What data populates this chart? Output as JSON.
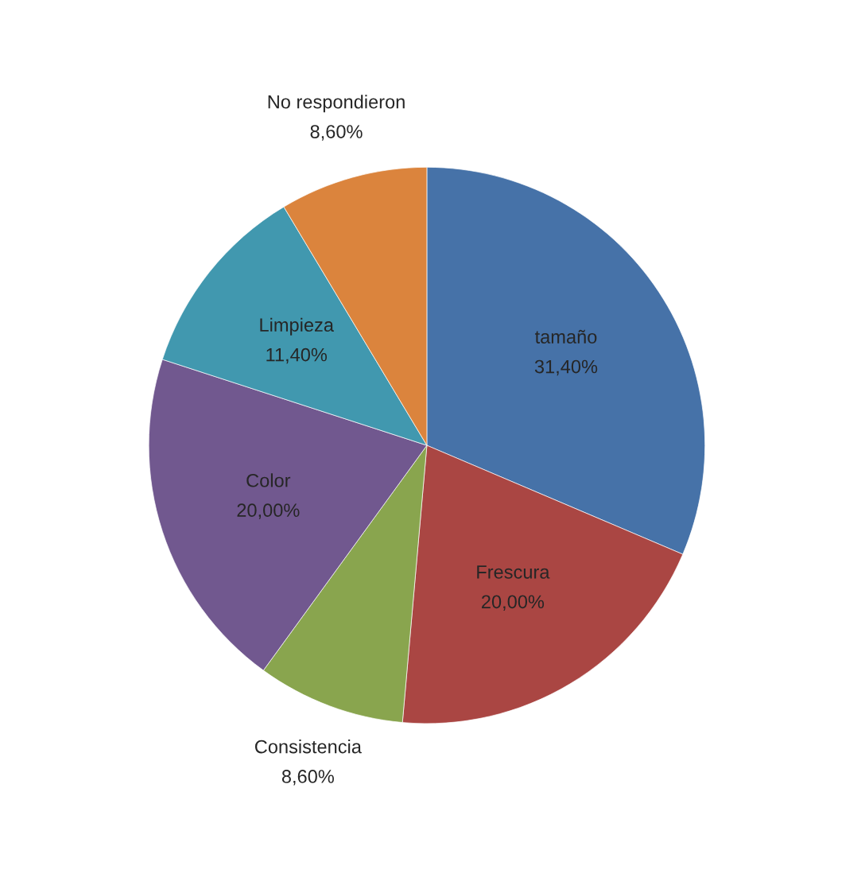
{
  "chart_data": {
    "type": "pie",
    "categories": [
      "tamaño",
      "Frescura",
      "Consistencia",
      "Color",
      "Limpieza",
      "No respondieron"
    ],
    "values": [
      31.4,
      20.0,
      8.6,
      20.0,
      11.4,
      8.6
    ],
    "value_labels": [
      "31,40%",
      "20,00%",
      "8,60%",
      "20,00%",
      "11,40%",
      "8,60%"
    ],
    "colors": [
      "#4672a8",
      "#aa4643",
      "#89a54e",
      "#71588f",
      "#4198af",
      "#db843d"
    ],
    "legend": false
  }
}
